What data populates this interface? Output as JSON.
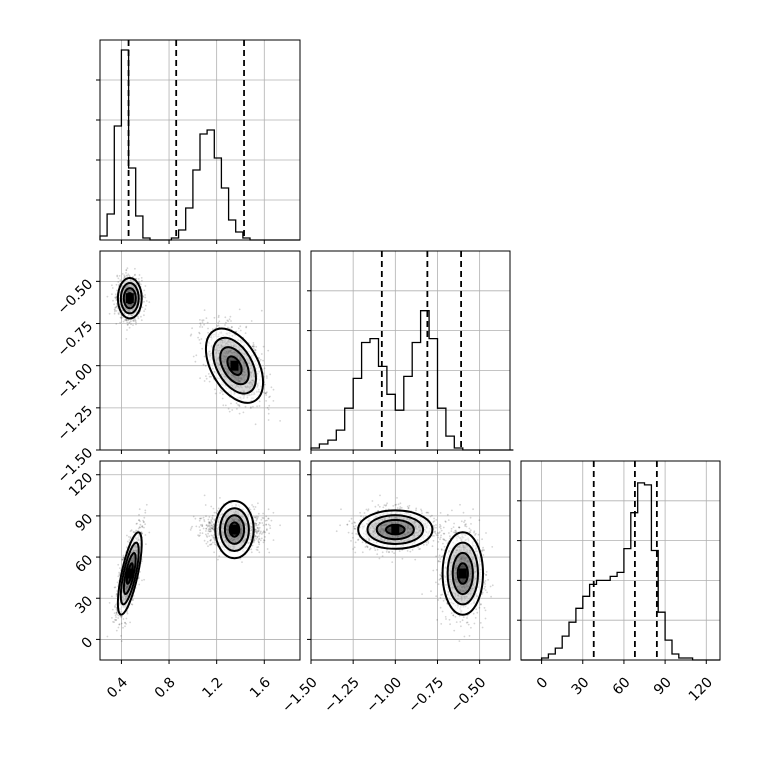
{
  "chart_data": {
    "type": "corner",
    "title": "",
    "grid": true,
    "parameters": [
      {
        "index": 0,
        "range": [
          0.22,
          1.9
        ],
        "ticks": [
          0.4,
          0.8,
          1.2,
          1.6
        ],
        "tick_labels": [
          "0.4",
          "0.8",
          "1.2",
          "1.6"
        ],
        "quantiles": [
          0.46,
          0.86,
          1.43
        ]
      },
      {
        "index": 1,
        "range": [
          -1.5,
          -0.32
        ],
        "ticks": [
          -1.5,
          -1.25,
          -1.0,
          -0.75,
          -0.5
        ],
        "tick_labels": [
          "−1.50",
          "−1.25",
          "−1.00",
          "−0.75",
          "−0.50"
        ],
        "quantiles": [
          -1.08,
          -0.81,
          -0.61
        ]
      },
      {
        "index": 2,
        "range": [
          -15,
          130
        ],
        "ticks": [
          0,
          30,
          60,
          90,
          120
        ],
        "tick_labels": [
          "0",
          "30",
          "60",
          "90",
          "120"
        ],
        "quantiles": [
          38,
          68,
          84
        ]
      }
    ],
    "histograms": [
      {
        "param": 0,
        "bin_edges": [
          0.22,
          0.28,
          0.34,
          0.4,
          0.46,
          0.52,
          0.58,
          0.64,
          0.7,
          0.76,
          0.82,
          0.88,
          0.94,
          1.0,
          1.06,
          1.12,
          1.18,
          1.24,
          1.3,
          1.36,
          1.42,
          1.48,
          1.54,
          1.6,
          1.66,
          1.72,
          1.78,
          1.84,
          1.9
        ],
        "counts": [
          0.02,
          0.13,
          0.57,
          0.95,
          0.36,
          0.12,
          0.01,
          0.0,
          0.0,
          0.0,
          0.01,
          0.05,
          0.16,
          0.35,
          0.53,
          0.55,
          0.41,
          0.26,
          0.1,
          0.04,
          0.01,
          0.0,
          0.0,
          0.0,
          0.0,
          0.0,
          0.0,
          0.0
        ]
      },
      {
        "param": 1,
        "bin_edges": [
          -1.5,
          -1.45,
          -1.4,
          -1.35,
          -1.3,
          -1.25,
          -1.2,
          -1.15,
          -1.1,
          -1.05,
          -1.0,
          -0.95,
          -0.9,
          -0.85,
          -0.8,
          -0.75,
          -0.7,
          -0.65,
          -0.6,
          -0.55,
          -0.5,
          -0.45,
          -0.4,
          -0.35,
          -0.3
        ],
        "counts": [
          0.01,
          0.03,
          0.05,
          0.1,
          0.21,
          0.36,
          0.54,
          0.56,
          0.42,
          0.28,
          0.2,
          0.37,
          0.54,
          0.7,
          0.56,
          0.21,
          0.07,
          0.01,
          0.0,
          0.0,
          0.0,
          0.0,
          0.0,
          0.0
        ]
      },
      {
        "param": 2,
        "bin_edges": [
          -15,
          -10,
          -5,
          0,
          5,
          10,
          15,
          20,
          25,
          30,
          35,
          40,
          45,
          50,
          55,
          60,
          65,
          70,
          75,
          80,
          85,
          90,
          95,
          100,
          105,
          110,
          115,
          120,
          125,
          130
        ],
        "counts": [
          0.0,
          0.0,
          0.0,
          0.01,
          0.03,
          0.06,
          0.12,
          0.19,
          0.26,
          0.32,
          0.38,
          0.4,
          0.4,
          0.42,
          0.44,
          0.56,
          0.74,
          0.89,
          0.88,
          0.55,
          0.24,
          0.1,
          0.03,
          0.01,
          0.01,
          0.0,
          0.0,
          0.0,
          0.0
        ]
      }
    ],
    "clusters": [
      {
        "mean": [
          0.47,
          -0.6,
          48
        ],
        "std": [
          0.05,
          0.06,
          15
        ],
        "corr": {
          "0-1": 0.0,
          "0-2": 0.72,
          "1-2": 0.0
        },
        "weight": 0.5
      },
      {
        "mean": [
          1.35,
          -1.0,
          80
        ],
        "std": [
          0.12,
          0.11,
          7
        ],
        "corr": {
          "0-1": -0.45,
          "0-2": 0.0,
          "1-2": 0.0
        },
        "weight": 0.5
      }
    ],
    "contour_levels": [
      "0.5-sigma",
      "1-sigma",
      "1.5-sigma",
      "2-sigma"
    ]
  }
}
